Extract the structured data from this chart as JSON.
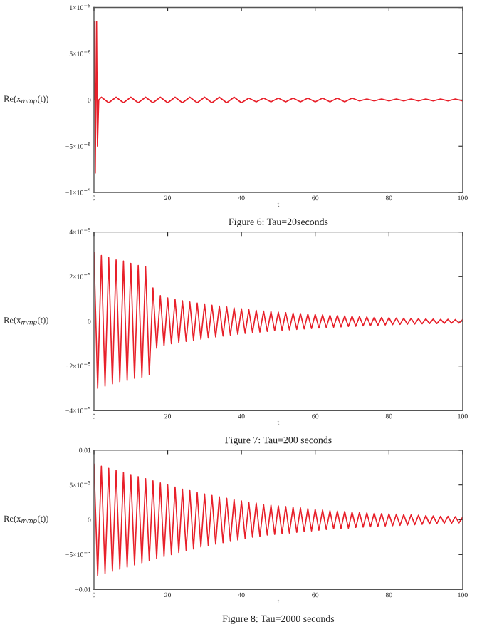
{
  "chart_data": [
    {
      "type": "line",
      "xlabel": "t",
      "ylabel": "Re(x$_{mmp}$(t))",
      "annotations": [
        "Figure 6: Tau=20seconds"
      ],
      "grid": false,
      "xlim": [
        0,
        100
      ],
      "xticks": [
        0,
        20,
        40,
        60,
        80,
        100
      ],
      "ylim": [
        -1e-05,
        1e-05
      ],
      "yticks": [
        {
          "value": -1e-05,
          "label": "−1×10$^{−5}$"
        },
        {
          "value": -5e-06,
          "label": "−5×10$^{−6}$"
        },
        0,
        {
          "value": 5e-06,
          "label": "5×10$^{−6}$"
        },
        {
          "value": 1e-05,
          "label": "1×10$^{−5}$"
        }
      ],
      "series": [
        {
          "color": "#e8202a",
          "x": [
            0,
            0.15,
            0.35,
            0.7,
            0.95,
            1.3,
            2,
            4,
            6,
            8,
            10,
            12,
            14,
            16,
            18,
            20,
            22,
            24,
            26,
            28,
            30,
            32,
            34,
            36,
            38,
            40,
            42,
            44,
            46,
            48,
            50,
            52,
            54,
            56,
            58,
            60,
            62,
            64,
            66,
            68,
            70,
            72,
            74,
            76,
            78,
            80,
            82,
            84,
            86,
            88,
            90,
            92,
            94,
            96,
            98,
            100
          ],
          "values": [
            0,
            8.5e-06,
            -7.9e-06,
            8.5e-06,
            -5e-06,
            0,
            3e-07,
            -3e-07,
            3e-07,
            -3e-07,
            3e-07,
            -3e-07,
            3e-07,
            -3e-07,
            3e-07,
            -3e-07,
            3e-07,
            -3e-07,
            3e-07,
            -3e-07,
            3e-07,
            -3e-07,
            3e-07,
            -3e-07,
            3e-07,
            -3e-07,
            2e-07,
            -2e-07,
            2e-07,
            -2e-07,
            2e-07,
            -2e-07,
            2e-07,
            -2e-07,
            2e-07,
            -2e-07,
            2e-07,
            -2e-07,
            2e-07,
            -2e-07,
            2e-07,
            -1e-07,
            1e-07,
            -1e-07,
            1e-07,
            -1e-07,
            1e-07,
            -1e-07,
            1e-07,
            -1e-07,
            1e-07,
            -1e-07,
            1e-07,
            -1e-07,
            1e-07,
            -1e-07
          ]
        }
      ]
    },
    {
      "type": "line",
      "xlabel": "t",
      "ylabel": "Re(x$_{mmp}$(t))",
      "annotations": [
        "Figure 7: Tau=200 seconds"
      ],
      "grid": false,
      "xlim": [
        0,
        100
      ],
      "xticks": [
        0,
        20,
        40,
        60,
        80,
        100
      ],
      "ylim": [
        -4e-05,
        4e-05
      ],
      "yticks": [
        {
          "value": -4e-05,
          "label": "−4×10$^{−5}$"
        },
        {
          "value": -2e-05,
          "label": "−2×10$^{−5}$"
        },
        0,
        {
          "value": 2e-05,
          "label": "2×10$^{−5}$"
        },
        {
          "value": 4e-05,
          "label": "4×10$^{−5}$"
        }
      ],
      "series": [
        {
          "color": "#e8202a",
          "x": [
            0,
            1,
            2,
            3,
            4,
            5,
            6,
            7,
            8,
            9,
            10,
            11,
            12,
            13,
            14,
            15,
            16,
            17,
            18,
            19,
            20,
            21,
            22,
            23,
            24,
            25,
            26,
            27,
            28,
            29,
            30,
            31,
            32,
            33,
            34,
            35,
            36,
            37,
            38,
            39,
            40,
            41,
            42,
            43,
            44,
            45,
            46,
            47,
            48,
            49,
            50,
            51,
            52,
            53,
            54,
            55,
            56,
            57,
            58,
            59,
            60,
            61,
            62,
            63,
            64,
            65,
            66,
            67,
            68,
            69,
            70,
            71,
            72,
            73,
            74,
            75,
            76,
            77,
            78,
            79,
            80,
            81,
            82,
            83,
            84,
            85,
            86,
            87,
            88,
            89,
            90,
            91,
            92,
            93,
            94,
            95,
            96,
            97,
            98,
            99,
            100
          ],
          "values": [
            3.1e-05,
            -3e-05,
            2.95e-05,
            -2.9e-05,
            2.85e-05,
            -2.8e-05,
            2.75e-05,
            -2.7e-05,
            2.7e-05,
            -2.65e-05,
            2.6e-05,
            -2.55e-05,
            2.5e-05,
            -2.5e-05,
            2.45e-05,
            -2.4e-05,
            1.5e-05,
            -1.2e-05,
            1.15e-05,
            -1.1e-05,
            1.05e-05,
            -1e-05,
            9.8e-06,
            -9.5e-06,
            9.2e-06,
            -9e-06,
            8.7e-06,
            -8.5e-06,
            8.2e-06,
            -8e-06,
            7.8e-06,
            -7.5e-06,
            7.2e-06,
            -7e-06,
            6.8e-06,
            -6.6e-06,
            6.4e-06,
            -6.2e-06,
            6e-06,
            -5.8e-06,
            5.6e-06,
            -5.4e-06,
            5.2e-06,
            -5e-06,
            4.9e-06,
            -4.8e-06,
            4.6e-06,
            -4.5e-06,
            4.4e-06,
            -4.2e-06,
            4.1e-06,
            -4e-06,
            3.9e-06,
            -3.8e-06,
            3.7e-06,
            -3.6e-06,
            3.5e-06,
            -3.4e-06,
            3.3e-06,
            -3.2e-06,
            3.1e-06,
            -3e-06,
            2.9e-06,
            -2.8e-06,
            2.7e-06,
            -2.6e-06,
            2.6e-06,
            -2.5e-06,
            2.4e-06,
            -2.3e-06,
            2.3e-06,
            -2.2e-06,
            2.1e-06,
            -2e-06,
            2e-06,
            -1.9e-06,
            1.8e-06,
            -1.8e-06,
            1.7e-06,
            -1.6e-06,
            1.6e-06,
            -1.5e-06,
            1.5e-06,
            -1.4e-06,
            1.4e-06,
            -1.3e-06,
            1.3e-06,
            -1.2e-06,
            1.2e-06,
            -1.1e-06,
            1.1e-06,
            -1e-06,
            1e-06,
            -1e-06,
            9e-07,
            -9e-07,
            9e-07,
            -8e-07,
            8e-07,
            -8e-07,
            8e-07
          ]
        }
      ]
    },
    {
      "type": "line",
      "xlabel": "t",
      "ylabel": "Re(x$_{mmp}$(t))",
      "annotations": [
        "Figure 8: Tau=2000 seconds"
      ],
      "grid": false,
      "xlim": [
        0,
        100
      ],
      "xticks": [
        0,
        20,
        40,
        60,
        80,
        100
      ],
      "ylim": [
        -0.01,
        0.01
      ],
      "yticks": [
        {
          "value": -0.01,
          "label": "−0.01"
        },
        {
          "value": -0.005,
          "label": "−5×10$^{−3}$"
        },
        0,
        {
          "value": 0.005,
          "label": "5×10$^{−3}$"
        },
        0.01
      ],
      "series": [
        {
          "color": "#e8202a",
          "x": [
            0,
            1,
            2,
            3,
            4,
            5,
            6,
            7,
            8,
            9,
            10,
            11,
            12,
            13,
            14,
            15,
            16,
            17,
            18,
            19,
            20,
            21,
            22,
            23,
            24,
            25,
            26,
            27,
            28,
            29,
            30,
            31,
            32,
            33,
            34,
            35,
            36,
            37,
            38,
            39,
            40,
            41,
            42,
            43,
            44,
            45,
            46,
            47,
            48,
            49,
            50,
            51,
            52,
            53,
            54,
            55,
            56,
            57,
            58,
            59,
            60,
            61,
            62,
            63,
            64,
            65,
            66,
            67,
            68,
            69,
            70,
            71,
            72,
            73,
            74,
            75,
            76,
            77,
            78,
            79,
            80,
            81,
            82,
            83,
            84,
            85,
            86,
            87,
            88,
            89,
            90,
            91,
            92,
            93,
            94,
            95,
            96,
            97,
            98,
            99,
            100
          ],
          "values": [
            0.008,
            -0.008,
            0.0077,
            -0.0077,
            0.0074,
            -0.0074,
            0.0071,
            -0.0071,
            0.0068,
            -0.0068,
            0.0065,
            -0.0065,
            0.0062,
            -0.0062,
            0.0059,
            -0.0059,
            0.0056,
            -0.0056,
            0.0053,
            -0.0053,
            0.005,
            -0.005,
            0.0047,
            -0.0047,
            0.0044,
            -0.0044,
            0.0042,
            -0.0042,
            0.0039,
            -0.0039,
            0.0037,
            -0.0037,
            0.0035,
            -0.0035,
            0.0033,
            -0.0033,
            0.0031,
            -0.0031,
            0.0029,
            -0.0029,
            0.0027,
            -0.0027,
            0.0025,
            -0.0025,
            0.0024,
            -0.0024,
            0.0022,
            -0.0022,
            0.0021,
            -0.0021,
            0.002,
            -0.002,
            0.0019,
            -0.0019,
            0.0018,
            -0.0018,
            0.0017,
            -0.0017,
            0.0016,
            -0.0016,
            0.0015,
            -0.0015,
            0.0014,
            -0.0014,
            0.0013,
            -0.0013,
            0.00125,
            -0.00125,
            0.0012,
            -0.0012,
            0.0011,
            -0.0011,
            0.00105,
            -0.00105,
            0.001,
            -0.001,
            0.00095,
            -0.00095,
            0.0009,
            -0.0009,
            0.00085,
            -0.00085,
            0.0008,
            -0.0008,
            0.00075,
            -0.00075,
            0.0007,
            -0.0007,
            0.00065,
            -0.00065,
            0.0006,
            -0.0006,
            0.00055,
            -0.00055,
            0.0005,
            -0.0005,
            0.0005,
            -0.0005,
            0.00045,
            -0.00045,
            0.0004
          ]
        }
      ]
    }
  ]
}
